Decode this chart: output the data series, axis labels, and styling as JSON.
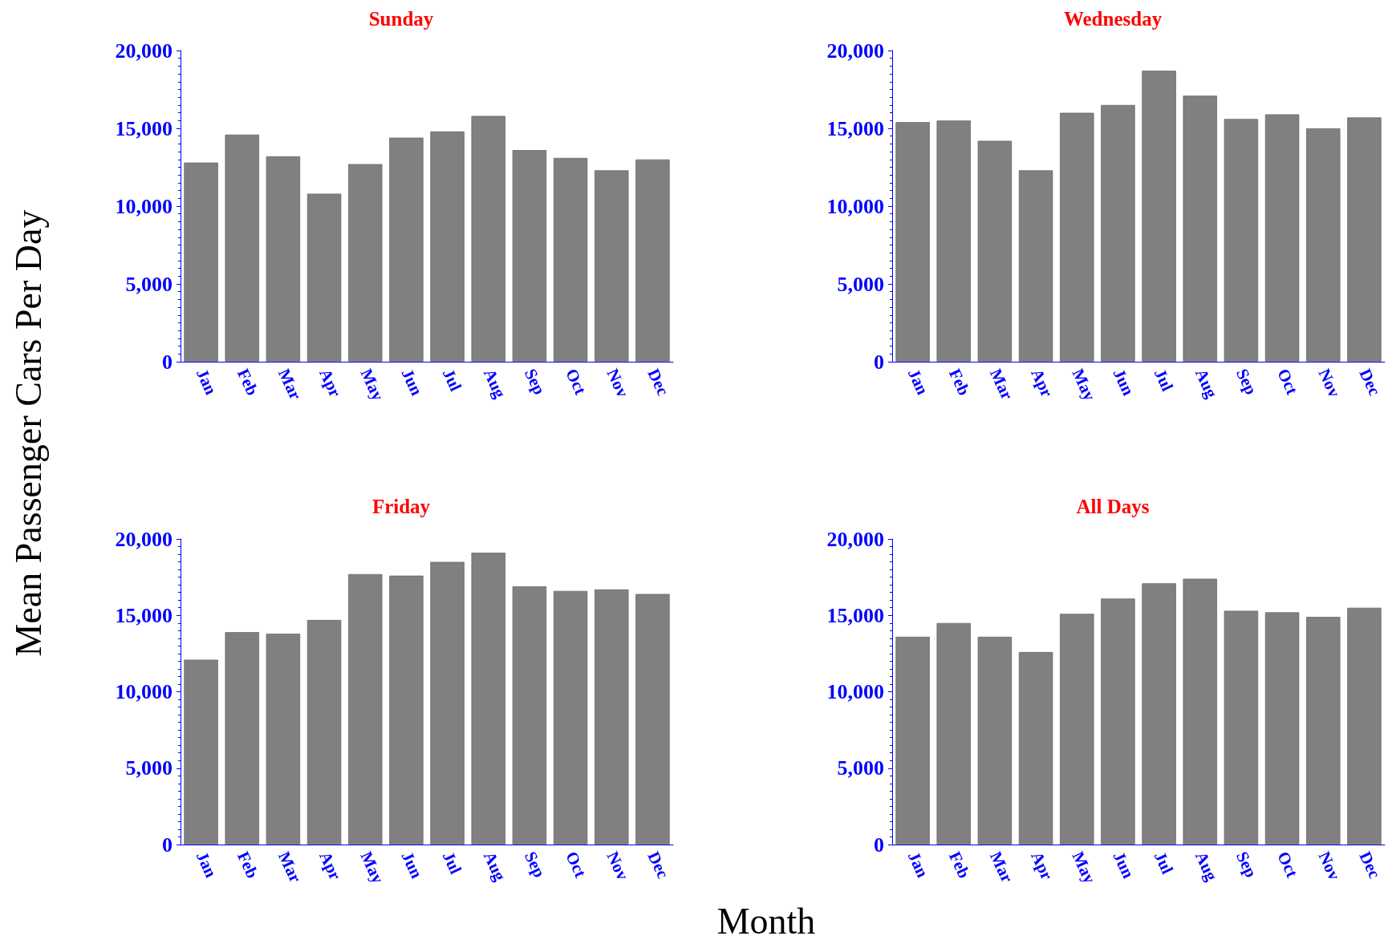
{
  "chart_data": [
    {
      "type": "bar",
      "title": "Sunday",
      "ylabel": "Mean Passenger Cars Per Day",
      "categories": [
        "Jan",
        "Feb",
        "Mar",
        "Apr",
        "May",
        "Jun",
        "Jul",
        "Aug",
        "Sep",
        "Oct",
        "Nov",
        "Dec"
      ],
      "color": "#808080",
      "ylim": [
        0,
        20000
      ],
      "yticks": [
        {
          "value": 0,
          "label": "0"
        },
        {
          "value": 5000,
          "label": "5,000"
        },
        {
          "value": 10000,
          "label": "10,000"
        },
        {
          "value": 15000,
          "label": "15,000"
        },
        {
          "value": 20000,
          "label": "20,000"
        }
      ],
      "values": [
        12800,
        14600,
        13200,
        10800,
        12700,
        14400,
        14800,
        15800,
        13600,
        13100,
        12300,
        13000
      ]
    },
    {
      "type": "bar",
      "title": "Wednesday",
      "categories": [
        "Jan",
        "Feb",
        "Mar",
        "Apr",
        "May",
        "Jun",
        "Jul",
        "Aug",
        "Sep",
        "Oct",
        "Nov",
        "Dec"
      ],
      "color": "#808080",
      "ylim": [
        0,
        20000
      ],
      "yticks": [
        {
          "value": 0,
          "label": "0"
        },
        {
          "value": 5000,
          "label": "5,000"
        },
        {
          "value": 10000,
          "label": "10,000"
        },
        {
          "value": 15000,
          "label": "15,000"
        },
        {
          "value": 20000,
          "label": "20,000"
        }
      ],
      "values": [
        15400,
        15500,
        14200,
        12300,
        16000,
        16500,
        18700,
        17100,
        15600,
        15900,
        15000,
        15700
      ]
    },
    {
      "type": "bar",
      "title": "Friday",
      "xlabel": "Month",
      "categories": [
        "Jan",
        "Feb",
        "Mar",
        "Apr",
        "May",
        "Jun",
        "Jul",
        "Aug",
        "Sep",
        "Oct",
        "Nov",
        "Dec"
      ],
      "color": "#808080",
      "ylim": [
        0,
        20000
      ],
      "yticks": [
        {
          "value": 0,
          "label": "0"
        },
        {
          "value": 5000,
          "label": "5,000"
        },
        {
          "value": 10000,
          "label": "10,000"
        },
        {
          "value": 15000,
          "label": "15,000"
        },
        {
          "value": 20000,
          "label": "20,000"
        }
      ],
      "values": [
        12100,
        13900,
        13800,
        14700,
        17700,
        17600,
        18500,
        19100,
        16900,
        16600,
        16700,
        16400
      ]
    },
    {
      "type": "bar",
      "title": "All Days",
      "categories": [
        "Jan",
        "Feb",
        "Mar",
        "Apr",
        "May",
        "Jun",
        "Jul",
        "Aug",
        "Sep",
        "Oct",
        "Nov",
        "Dec"
      ],
      "color": "#808080",
      "ylim": [
        0,
        20000
      ],
      "yticks": [
        {
          "value": 0,
          "label": "0"
        },
        {
          "value": 5000,
          "label": "5,000"
        },
        {
          "value": 10000,
          "label": "10,000"
        },
        {
          "value": 15000,
          "label": "15,000"
        },
        {
          "value": 20000,
          "label": "20,000"
        }
      ],
      "values": [
        13600,
        14500,
        13600,
        12600,
        15100,
        16100,
        17100,
        17400,
        15300,
        15200,
        14900,
        15500
      ]
    }
  ]
}
